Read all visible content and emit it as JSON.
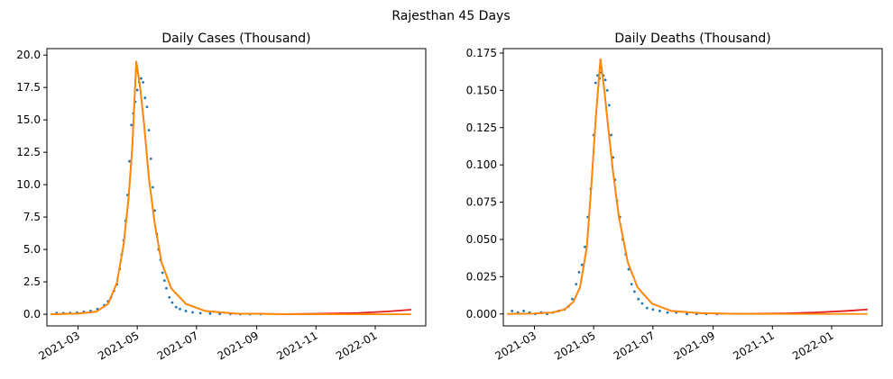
{
  "figure": {
    "suptitle": "Rajesthan 45 Days"
  },
  "colors": {
    "observed": "#1f77b4",
    "fit_red": "#e41a1c",
    "fit_orange": "#ff8c00",
    "axis": "#000000"
  },
  "chart_data": [
    {
      "type": "scatter",
      "title": "Daily Cases (Thousand)",
      "xlabel": "",
      "ylabel": "",
      "x_ticks": [
        "2021-03",
        "2021-05",
        "2021-07",
        "2021-09",
        "2021-11",
        "2022-01"
      ],
      "x_range": [
        "2021-01-28",
        "2022-02-22"
      ],
      "y_ticks": [
        "0.0",
        "2.5",
        "5.0",
        "7.5",
        "10.0",
        "12.5",
        "15.0",
        "17.5",
        "20.0"
      ],
      "ylim": [
        -0.9,
        20.5
      ],
      "grid": false,
      "fit_peak": {
        "date": "2021-04-30",
        "value": 19.5
      },
      "series": [
        {
          "kind": "points",
          "color": "#1f77b4",
          "x": [
            "2021-02-07",
            "2021-02-14",
            "2021-02-21",
            "2021-02-28",
            "2021-03-07",
            "2021-03-14",
            "2021-03-21",
            "2021-03-28",
            "2021-04-01",
            "2021-04-04",
            "2021-04-07",
            "2021-04-10",
            "2021-04-13",
            "2021-04-15",
            "2021-04-17",
            "2021-04-19",
            "2021-04-21",
            "2021-04-23",
            "2021-04-25",
            "2021-04-27",
            "2021-04-29",
            "2021-05-01",
            "2021-05-03",
            "2021-05-05",
            "2021-05-07",
            "2021-05-09",
            "2021-05-11",
            "2021-05-13",
            "2021-05-15",
            "2021-05-17",
            "2021-05-19",
            "2021-05-21",
            "2021-05-23",
            "2021-05-25",
            "2021-05-27",
            "2021-05-29",
            "2021-05-31",
            "2021-06-03",
            "2021-06-06",
            "2021-06-10",
            "2021-06-14",
            "2021-06-20",
            "2021-06-27",
            "2021-07-05",
            "2021-07-15",
            "2021-07-25",
            "2021-08-05",
            "2021-08-15",
            "2021-08-25",
            "2021-09-05"
          ],
          "y": [
            0.1,
            0.08,
            0.1,
            0.12,
            0.18,
            0.25,
            0.4,
            0.7,
            1.0,
            1.3,
            1.8,
            2.3,
            3.5,
            4.6,
            5.7,
            7.2,
            9.2,
            11.8,
            14.6,
            15.5,
            16.4,
            17.3,
            17.9,
            18.2,
            17.9,
            16.7,
            16.0,
            14.2,
            12.0,
            9.8,
            8.0,
            6.2,
            5.0,
            4.2,
            3.2,
            2.6,
            2.0,
            1.3,
            0.9,
            0.55,
            0.4,
            0.25,
            0.15,
            0.08,
            0.05,
            0.02,
            0.02,
            0.01,
            0.01,
            0.01
          ]
        },
        {
          "kind": "curve",
          "name": "",
          "color": "#e41a1c",
          "x": [
            "2021-02-01",
            "2021-03-01",
            "2021-03-20",
            "2021-04-01",
            "2021-04-10",
            "2021-04-17",
            "2021-04-22",
            "2021-04-26",
            "2021-04-30",
            "2021-05-04",
            "2021-05-08",
            "2021-05-13",
            "2021-05-19",
            "2021-05-26",
            "2021-06-05",
            "2021-06-20",
            "2021-07-10",
            "2021-08-10",
            "2021-10-01",
            "2021-11-15",
            "2021-12-15",
            "2022-01-15",
            "2022-02-07"
          ],
          "y": [
            0.0,
            0.05,
            0.2,
            0.8,
            2.4,
            5.4,
            8.9,
            13.0,
            19.5,
            17.5,
            14.7,
            10.5,
            7.0,
            4.0,
            2.0,
            0.8,
            0.25,
            0.05,
            0.01,
            0.05,
            0.1,
            0.22,
            0.35
          ]
        },
        {
          "kind": "curve",
          "name": "",
          "color": "#ff8c00",
          "x": [
            "2021-02-01",
            "2021-03-01",
            "2021-03-20",
            "2021-04-01",
            "2021-04-10",
            "2021-04-17",
            "2021-04-22",
            "2021-04-26",
            "2021-04-30",
            "2021-05-04",
            "2021-05-08",
            "2021-05-13",
            "2021-05-19",
            "2021-05-26",
            "2021-06-05",
            "2021-06-20",
            "2021-07-10",
            "2021-08-10",
            "2021-10-01",
            "2021-11-15",
            "2021-12-15",
            "2022-01-15",
            "2022-02-07"
          ],
          "y": [
            0.0,
            0.05,
            0.2,
            0.8,
            2.4,
            5.4,
            8.9,
            13.0,
            19.5,
            17.5,
            14.7,
            10.5,
            7.0,
            4.0,
            2.0,
            0.8,
            0.25,
            0.05,
            0.0,
            0.0,
            0.0,
            0.0,
            0.0
          ]
        }
      ]
    },
    {
      "type": "scatter",
      "title": "Daily Deaths (Thousand)",
      "xlabel": "",
      "ylabel": "",
      "x_ticks": [
        "2021-03",
        "2021-05",
        "2021-07",
        "2021-09",
        "2021-11",
        "2022-01"
      ],
      "x_range": [
        "2021-01-28",
        "2022-02-22"
      ],
      "y_ticks": [
        "0.000",
        "0.025",
        "0.050",
        "0.075",
        "0.100",
        "0.125",
        "0.150",
        "0.175"
      ],
      "ylim": [
        -0.008,
        0.178
      ],
      "grid": false,
      "fit_peak": {
        "date": "2021-05-08",
        "value": 0.171
      },
      "series": [
        {
          "kind": "points",
          "color": "#1f77b4",
          "x": [
            "2021-02-06",
            "2021-02-12",
            "2021-02-18",
            "2021-02-24",
            "2021-03-02",
            "2021-03-08",
            "2021-03-14",
            "2021-03-20",
            "2021-03-26",
            "2021-04-01",
            "2021-04-05",
            "2021-04-09",
            "2021-04-13",
            "2021-04-16",
            "2021-04-19",
            "2021-04-22",
            "2021-04-25",
            "2021-04-28",
            "2021-05-01",
            "2021-05-03",
            "2021-05-05",
            "2021-05-07",
            "2021-05-09",
            "2021-05-11",
            "2021-05-13",
            "2021-05-15",
            "2021-05-17",
            "2021-05-19",
            "2021-05-21",
            "2021-05-23",
            "2021-05-25",
            "2021-05-28",
            "2021-05-31",
            "2021-06-03",
            "2021-06-06",
            "2021-06-09",
            "2021-06-12",
            "2021-06-16",
            "2021-06-20",
            "2021-06-25",
            "2021-07-01",
            "2021-07-08",
            "2021-07-16",
            "2021-07-25",
            "2021-08-05",
            "2021-08-15",
            "2021-08-25",
            "2021-09-05"
          ],
          "y": [
            0.002,
            0.001,
            0.002,
            0.001,
            0.0,
            0.001,
            0.0,
            0.001,
            0.002,
            0.003,
            0.005,
            0.01,
            0.02,
            0.028,
            0.033,
            0.045,
            0.065,
            0.084,
            0.12,
            0.155,
            0.16,
            0.158,
            0.162,
            0.16,
            0.157,
            0.15,
            0.14,
            0.12,
            0.105,
            0.09,
            0.076,
            0.065,
            0.05,
            0.04,
            0.03,
            0.02,
            0.015,
            0.01,
            0.007,
            0.004,
            0.003,
            0.002,
            0.001,
            0.001,
            0.0,
            0.0,
            0.0,
            0.0
          ]
        },
        {
          "kind": "curve",
          "name": "",
          "color": "#e41a1c",
          "x": [
            "2021-02-01",
            "2021-03-01",
            "2021-03-20",
            "2021-04-01",
            "2021-04-10",
            "2021-04-17",
            "2021-04-24",
            "2021-04-29",
            "2021-05-03",
            "2021-05-08",
            "2021-05-12",
            "2021-05-16",
            "2021-05-21",
            "2021-05-27",
            "2021-06-05",
            "2021-06-15",
            "2021-06-30",
            "2021-07-20",
            "2021-08-20",
            "2021-10-01",
            "2021-11-15",
            "2021-12-15",
            "2022-01-15",
            "2022-02-07"
          ],
          "y": [
            0.0,
            0.0003,
            0.001,
            0.003,
            0.008,
            0.018,
            0.045,
            0.09,
            0.13,
            0.171,
            0.15,
            0.125,
            0.095,
            0.065,
            0.035,
            0.018,
            0.007,
            0.002,
            0.0005,
            0.0001,
            0.0004,
            0.001,
            0.002,
            0.003
          ]
        },
        {
          "kind": "curve",
          "name": "",
          "color": "#ff8c00",
          "x": [
            "2021-02-01",
            "2021-03-01",
            "2021-03-20",
            "2021-04-01",
            "2021-04-10",
            "2021-04-17",
            "2021-04-24",
            "2021-04-29",
            "2021-05-03",
            "2021-05-08",
            "2021-05-12",
            "2021-05-16",
            "2021-05-21",
            "2021-05-27",
            "2021-06-05",
            "2021-06-15",
            "2021-06-30",
            "2021-07-20",
            "2021-08-20",
            "2021-10-01",
            "2021-11-15",
            "2021-12-15",
            "2022-01-15",
            "2022-02-07"
          ],
          "y": [
            0.0,
            0.0003,
            0.001,
            0.003,
            0.008,
            0.018,
            0.045,
            0.09,
            0.13,
            0.171,
            0.15,
            0.125,
            0.095,
            0.065,
            0.035,
            0.018,
            0.007,
            0.002,
            0.0005,
            0.0,
            0.0,
            0.0,
            0.0,
            0.0
          ]
        }
      ]
    }
  ]
}
